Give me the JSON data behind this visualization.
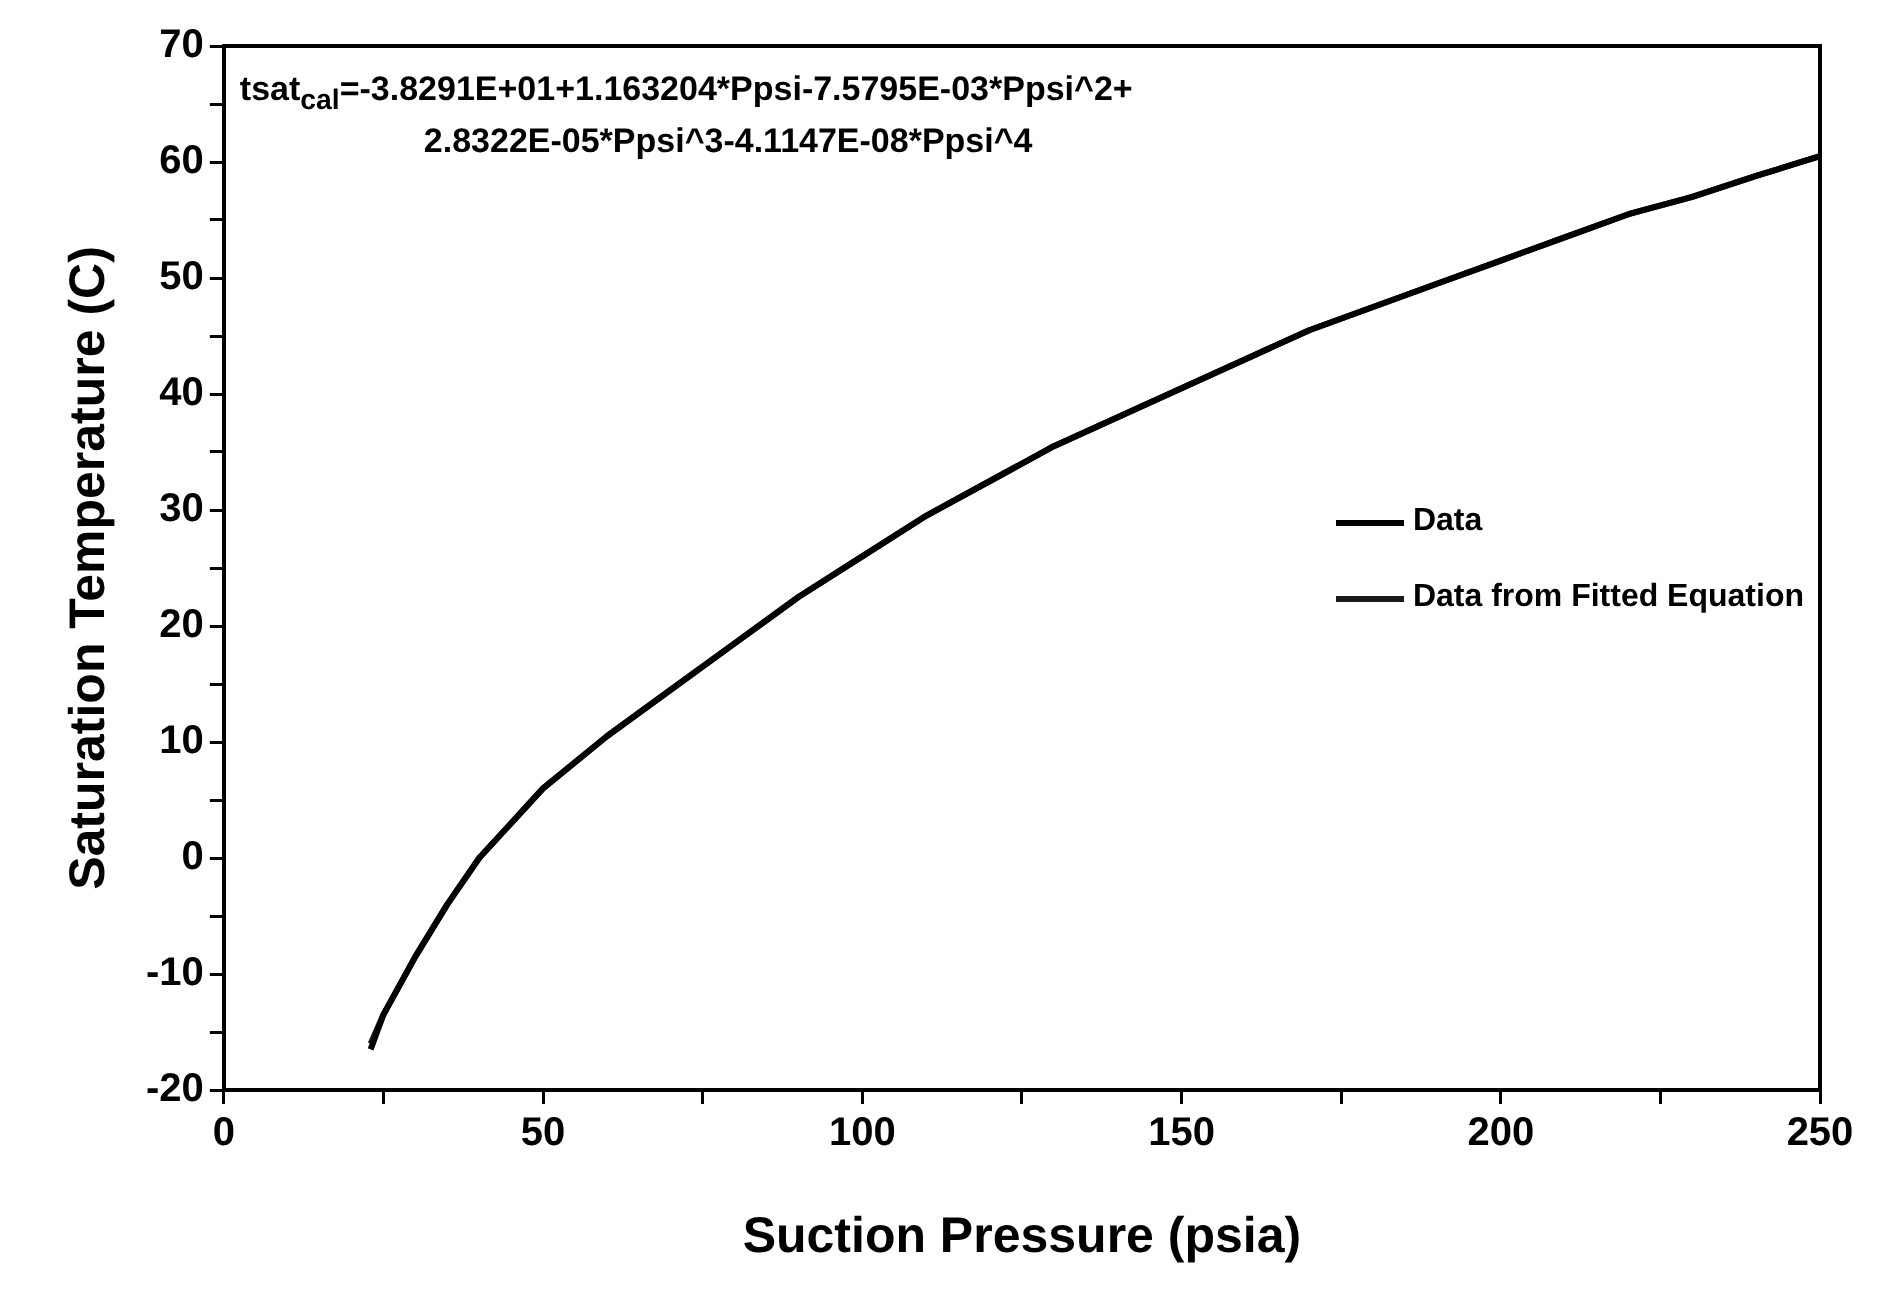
{
  "chart_data": {
    "type": "line",
    "xlabel": "Suction Pressure (psia)",
    "ylabel": "Saturation Temperature (C)",
    "annotations": [
      "tsat$_{cal}$=-3.8291E+01+1.163204*Ppsi-7.5795E-03*Ppsi^2+",
      "2.8322E-05*Ppsi^3-4.1147E-08*Ppsi^4"
    ],
    "xlim": [
      0,
      250
    ],
    "xticks": [
      0,
      {
        "value": 25,
        "label": null
      },
      50,
      {
        "value": 75,
        "label": null
      },
      100,
      {
        "value": 125,
        "label": null
      },
      150,
      {
        "value": 175,
        "label": null
      },
      200,
      {
        "value": 225,
        "label": null
      },
      250
    ],
    "ylim": [
      -20,
      70
    ],
    "yticks": [
      -20,
      {
        "value": -15,
        "label": null
      },
      -10,
      {
        "value": -5,
        "label": null
      },
      0,
      {
        "value": 5,
        "label": null
      },
      10,
      {
        "value": 15,
        "label": null
      },
      20,
      {
        "value": 25,
        "label": null
      },
      30,
      {
        "value": 35,
        "label": null
      },
      40,
      {
        "value": 45,
        "label": null
      },
      50,
      {
        "value": 55,
        "label": null
      },
      60,
      {
        "value": 65,
        "label": null
      },
      70
    ],
    "grid": false,
    "legend": "right",
    "marker": "none",
    "line_style": "solid",
    "series": [
      {
        "name": "Data",
        "color": "#000000",
        "x": [
          23,
          25,
          30,
          35,
          40,
          45,
          50,
          60,
          70,
          80,
          90,
          100,
          110,
          120,
          130,
          140,
          150,
          160,
          170,
          180,
          190,
          200,
          210,
          220,
          230,
          240,
          250
        ],
        "values": [
          -16.5,
          -13.5,
          -8.5,
          -4,
          0,
          3,
          6,
          10.5,
          14.5,
          18.5,
          22.5,
          26,
          29.5,
          32.5,
          35.5,
          38,
          40.5,
          43,
          45.5,
          47.5,
          49.5,
          51.5,
          53.5,
          55.5,
          57,
          58.8,
          60.5
        ]
      },
      {
        "name": "Data from Fitted Equation",
        "color": "#1a1a1a",
        "x": [
          23,
          25,
          30,
          35,
          40,
          45,
          50,
          60,
          70,
          80,
          90,
          100,
          110,
          120,
          130,
          140,
          150,
          160,
          170,
          180,
          190,
          200,
          210,
          220,
          230,
          240,
          250
        ],
        "values": [
          -16,
          -13.5,
          -8.5,
          -4,
          0,
          3,
          6,
          10.5,
          14.5,
          18.5,
          22.5,
          26,
          29.5,
          32.5,
          35.5,
          38,
          40.5,
          43,
          45.5,
          47.5,
          49.5,
          51.5,
          53.5,
          55.5,
          57,
          58.8,
          60.5
        ]
      }
    ]
  }
}
